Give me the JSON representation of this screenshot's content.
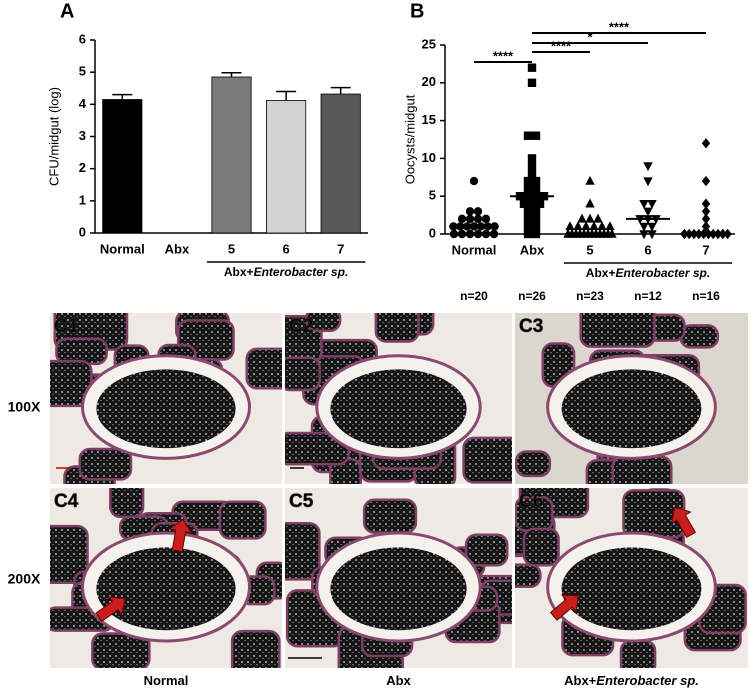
{
  "chart_data": [
    {
      "type": "bar",
      "panel_label": "A",
      "y_label": "CFU/midgut (log)",
      "categories": [
        "Normal",
        "Abx",
        "5",
        "6",
        "7"
      ],
      "values": [
        4.15,
        0,
        4.85,
        4.12,
        4.32
      ],
      "errors": [
        0.15,
        0,
        0.13,
        0.28,
        0.2
      ],
      "colors": [
        "#000000",
        "#888888",
        "#7a7a7a",
        "#d3d3d3",
        "#595959"
      ],
      "ylim": [
        0,
        6
      ],
      "yticks": [
        0,
        1,
        2,
        3,
        4,
        5,
        6
      ],
      "group_label": {
        "text": "Abx+",
        "italic": "Enterobacter sp."
      }
    },
    {
      "type": "scatter",
      "panel_label": "B",
      "y_label": "Oocysts/midgut",
      "categories": [
        "Normal",
        "Abx",
        "5",
        "6",
        "7"
      ],
      "groups": [
        {
          "marker": "circle",
          "values": [
            7,
            3,
            3,
            2,
            2,
            2,
            2,
            1,
            1,
            1,
            1,
            1,
            1,
            1,
            0,
            0,
            0,
            0,
            0,
            0
          ]
        },
        {
          "marker": "square",
          "values": [
            22,
            20,
            13,
            13,
            10,
            9,
            8,
            7,
            7,
            6,
            6,
            5,
            5,
            5,
            5,
            4,
            4,
            4,
            3,
            3,
            2,
            2,
            1,
            1,
            0,
            0
          ]
        },
        {
          "marker": "triangle",
          "values": [
            7,
            4,
            2,
            2,
            2,
            1,
            1,
            1,
            1,
            1,
            1,
            0,
            0,
            0,
            0,
            0,
            0,
            0,
            0,
            0,
            0,
            0,
            0
          ]
        },
        {
          "marker": "triangle-down",
          "values": [
            9,
            7,
            4,
            4,
            3,
            2,
            2,
            2,
            1,
            1,
            0,
            0
          ]
        },
        {
          "marker": "diamond",
          "values": [
            12,
            7,
            4,
            3,
            2,
            1,
            0,
            0,
            0,
            0,
            0,
            0,
            0,
            0,
            0,
            0
          ]
        }
      ],
      "medians": [
        1,
        5,
        0,
        2,
        0
      ],
      "n_labels": [
        "n=20",
        "n=26",
        "n=23",
        "n=12",
        "n=16"
      ],
      "significance": [
        {
          "from": "Normal",
          "to": "Abx",
          "label": "****"
        },
        {
          "from": "Abx",
          "to": "5",
          "label": "****"
        },
        {
          "from": "Abx",
          "to": "6",
          "label": "*"
        },
        {
          "from": "Abx",
          "to": "7",
          "label": "****"
        }
      ],
      "ylim": [
        0,
        25
      ],
      "yticks": [
        0,
        5,
        10,
        15,
        20,
        25
      ],
      "group_label": {
        "text": "Abx+",
        "italic": "Enterobacter sp."
      }
    }
  ],
  "micrographs": {
    "panel_labels": [
      "C1",
      "C2",
      "C3",
      "C4",
      "C5",
      "C6"
    ],
    "row_labels": [
      "100X",
      "200X"
    ],
    "column_labels": [
      {
        "text": "Normal"
      },
      {
        "text": "Abx"
      },
      {
        "text": "Abx+",
        "italic": "Enterobacter sp."
      }
    ]
  }
}
